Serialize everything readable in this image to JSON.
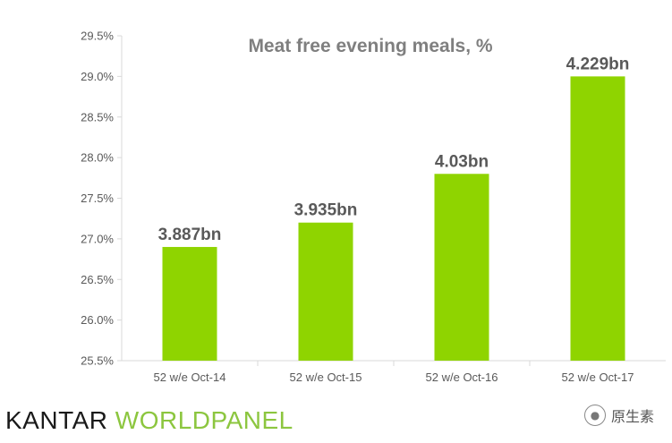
{
  "chart_data": {
    "type": "bar",
    "title": "Meat free evening meals, %",
    "categories": [
      "52 w/e Oct-14",
      "52 w/e Oct-15",
      "52 w/e Oct-16",
      "52 w/e Oct-17"
    ],
    "values": [
      26.9,
      27.2,
      27.8,
      29.0
    ],
    "data_labels": [
      "3.887bn",
      "3.935bn",
      "4.03bn",
      "4.229bn"
    ],
    "ylim": [
      25.5,
      29.5
    ],
    "yticks": [
      "25.5%",
      "26.0%",
      "26.5%",
      "27.0%",
      "27.5%",
      "28.0%",
      "28.5%",
      "29.0%",
      "29.5%"
    ],
    "xlabel": "",
    "ylabel": "",
    "bar_color": "#8fd400",
    "grid": false
  },
  "branding": {
    "logo_part1": "KANTAR",
    "logo_part2": "WORLDPANEL",
    "logo_color": "#8cc63f"
  },
  "watermark": {
    "text": "原生素",
    "icon": "wechat-icon"
  }
}
